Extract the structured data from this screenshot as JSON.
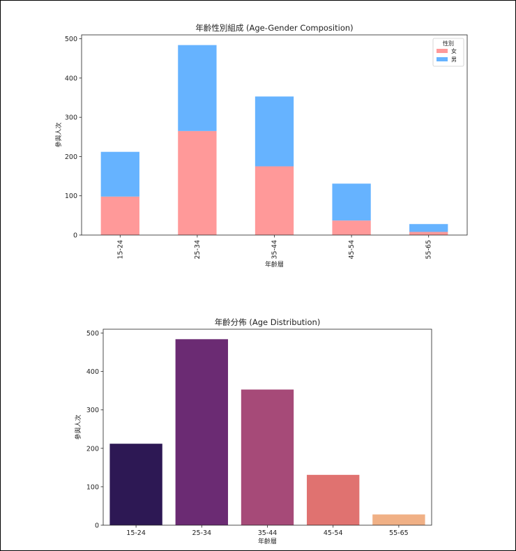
{
  "chart_data": [
    {
      "type": "bar",
      "stacked": true,
      "title": "年齡性別組成 (Age-Gender Composition)",
      "xlabel": "年齡層",
      "ylabel": "參與人次",
      "categories": [
        "15-24",
        "25-34",
        "35-44",
        "45-54",
        "55-65"
      ],
      "series": [
        {
          "name": "女",
          "color": "#ff9999",
          "values": [
            98,
            265,
            175,
            37,
            8
          ]
        },
        {
          "name": "男",
          "color": "#66b3ff",
          "values": [
            114,
            219,
            178,
            94,
            20
          ]
        }
      ],
      "ylim": [
        0,
        510
      ],
      "yticks": [
        0,
        100,
        200,
        300,
        400,
        500
      ],
      "legend": {
        "title": "性別",
        "placement": "top-right"
      },
      "xtick_rotation": "vertical",
      "grid": false
    },
    {
      "type": "bar",
      "stacked": false,
      "title": "年齡分佈 (Age Distribution)",
      "xlabel": "年齡層",
      "ylabel": "參與人次",
      "categories": [
        "15-24",
        "25-34",
        "35-44",
        "45-54",
        "55-65"
      ],
      "values": [
        212,
        484,
        353,
        131,
        28
      ],
      "colors": [
        "#2d1854",
        "#6b2b73",
        "#a64a78",
        "#e07270",
        "#f0b085"
      ],
      "ylim": [
        0,
        510
      ],
      "yticks": [
        0,
        100,
        200,
        300,
        400,
        500
      ],
      "grid": false
    }
  ]
}
